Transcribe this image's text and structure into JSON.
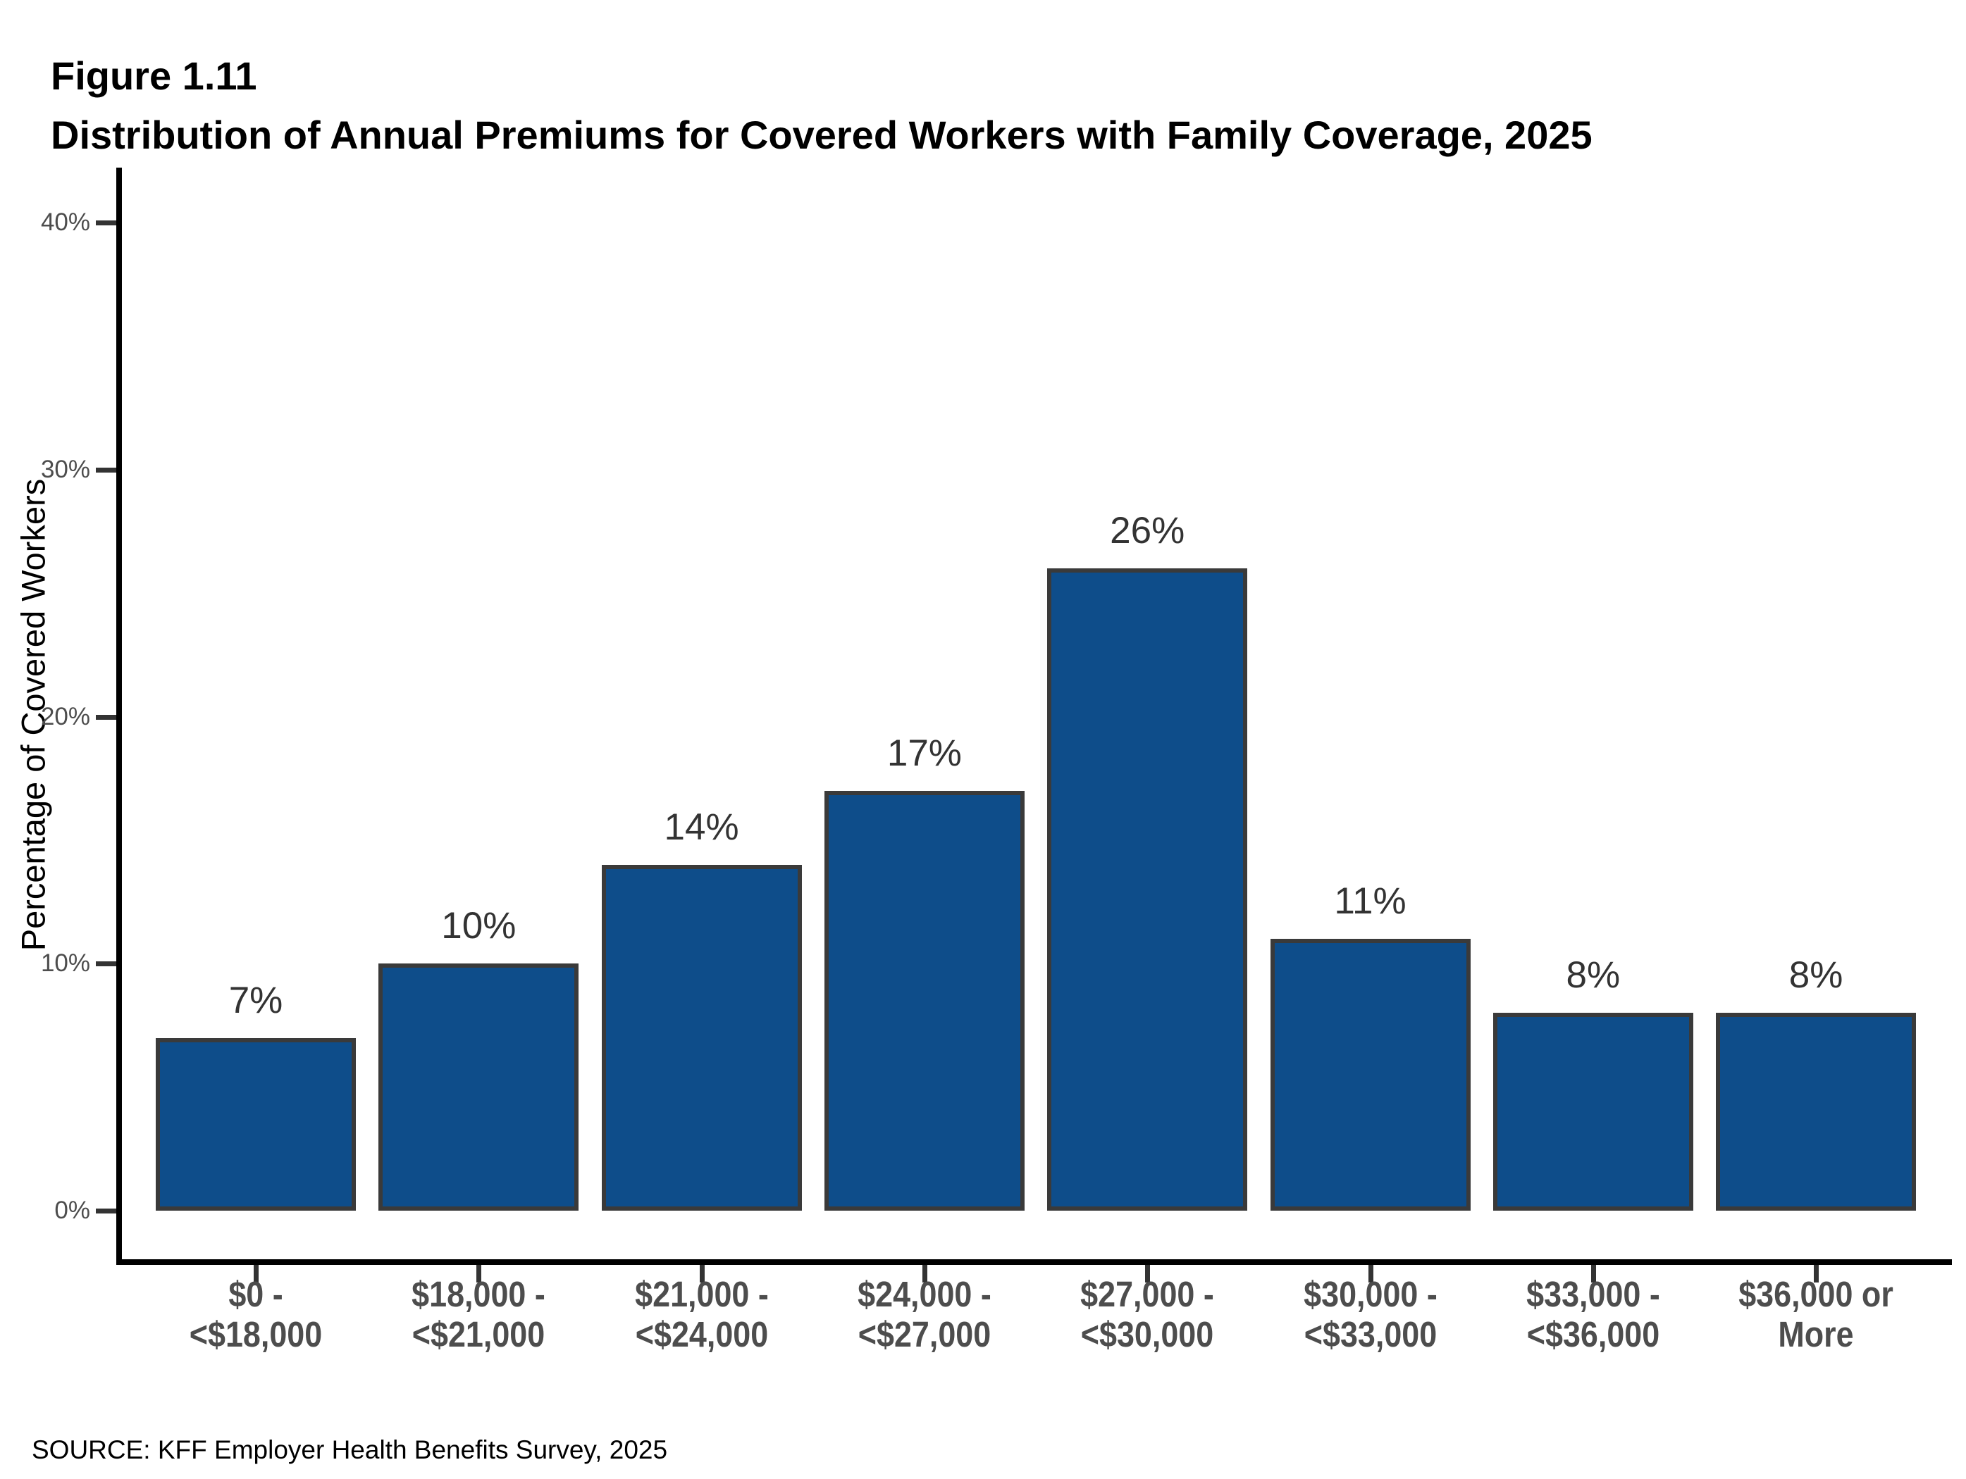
{
  "figure_label": "Figure 1.11",
  "title": "Distribution of Annual Premiums for Covered Workers with Family Coverage, 2025",
  "source": "SOURCE: KFF Employer Health Benefits Survey, 2025",
  "colors": {
    "bar_fill": "#0E4D8A",
    "bar_border": "#3A3A3A",
    "axis_line": "#000000",
    "tick_mark": "#333333",
    "axis_text": "#4D4D4D",
    "data_label": "#333333",
    "title_text": "#000000",
    "background": "#FFFFFF"
  },
  "chart_data": {
    "type": "bar",
    "title": "Distribution of Annual Premiums for Covered Workers with Family Coverage, 2025",
    "categories": [
      [
        "$0 -",
        "<$18,000"
      ],
      [
        "$18,000 -",
        "<$21,000"
      ],
      [
        "$21,000 -",
        "<$24,000"
      ],
      [
        "$24,000 -",
        "<$27,000"
      ],
      [
        "$27,000 -",
        "<$30,000"
      ],
      [
        "$30,000 -",
        "<$33,000"
      ],
      [
        "$33,000 -",
        "<$36,000"
      ],
      [
        "$36,000 or",
        "More"
      ]
    ],
    "values": [
      7,
      10,
      14,
      17,
      26,
      11,
      8,
      8
    ],
    "value_labels": [
      "7%",
      "10%",
      "14%",
      "17%",
      "26%",
      "11%",
      "8%",
      "8%"
    ],
    "xlabel": "",
    "ylabel": "Percentage of Covered Workers",
    "ylim": [
      0,
      40
    ],
    "yticks": [
      0,
      10,
      20,
      30,
      40
    ],
    "ytick_labels": [
      "0%",
      "10%",
      "20%",
      "30%",
      "40%"
    ],
    "grid": false,
    "legend": "none",
    "bar_color": "#0E4D8A",
    "bar_border_color": "#3A3A3A"
  }
}
